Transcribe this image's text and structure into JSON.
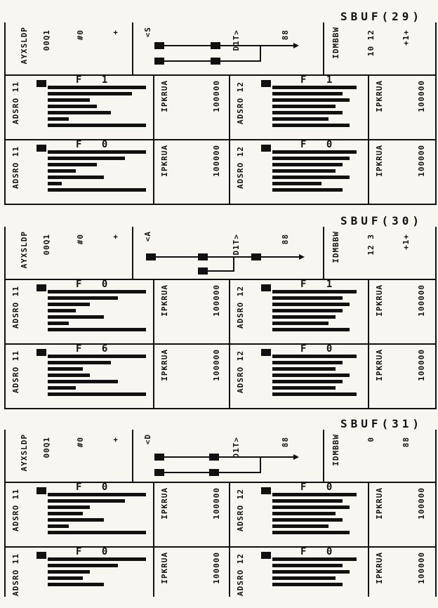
{
  "blocks": [
    {
      "title": "SBUF(29)",
      "header": {
        "col_a": "AYXSLDP",
        "col_b": "00Q1",
        "col_c": "#0",
        "col_d": "+",
        "col_e": "<S",
        "col_f": "D1T>",
        "col_g": "88",
        "col_h": "IDMBBW",
        "col_i": "10 12",
        "col_j": "+1+"
      },
      "rows": [
        {
          "left": {
            "label": "ADSRO 11",
            "f": "F 1"
          },
          "right": {
            "label": "ADSRO 12",
            "f": "F 1"
          }
        },
        {
          "left": {
            "label": "ADSRO 11",
            "f": "F 0"
          },
          "right": {
            "label": "ADSRO 12",
            "f": "F 0"
          }
        }
      ]
    },
    {
      "title": "SBUF(30)",
      "header": {
        "col_a": "AYXSLDP",
        "col_b": "00Q1",
        "col_c": "#0",
        "col_d": "+",
        "col_e": "<A",
        "col_f": "D1T>",
        "col_g": "88",
        "col_h": "IDMBBW",
        "col_i": "12 3",
        "col_j": "+1+"
      },
      "rows": [
        {
          "left": {
            "label": "ADSRO 11",
            "f": "F 0"
          },
          "right": {
            "label": "ADSRO 12",
            "f": "F 1"
          }
        },
        {
          "left": {
            "label": "ADSRO 11",
            "f": "F 6"
          },
          "right": {
            "label": "ADSRO 12",
            "f": "F 0"
          }
        }
      ]
    },
    {
      "title": "SBUF(31)",
      "header": {
        "col_a": "AYXSLDP",
        "col_b": "00Q1",
        "col_c": "#0",
        "col_d": "+",
        "col_e": "<D",
        "col_f": "D1T>",
        "col_g": "88",
        "col_h": "IDMBBW",
        "col_i": "0",
        "col_j": "88"
      },
      "rows": [
        {
          "left": {
            "label": "ADSRO 11",
            "f": "F 0"
          },
          "right": {
            "label": "ADSRO 12",
            "f": "F 0"
          }
        },
        {
          "left": {
            "label": "ADSRO 11",
            "f": "F 0"
          },
          "right": {
            "label": "ADSRO 12",
            "f": "F 0"
          }
        }
      ]
    }
  ],
  "reg_flags": "IPKRUA",
  "reg_digits": "100000"
}
